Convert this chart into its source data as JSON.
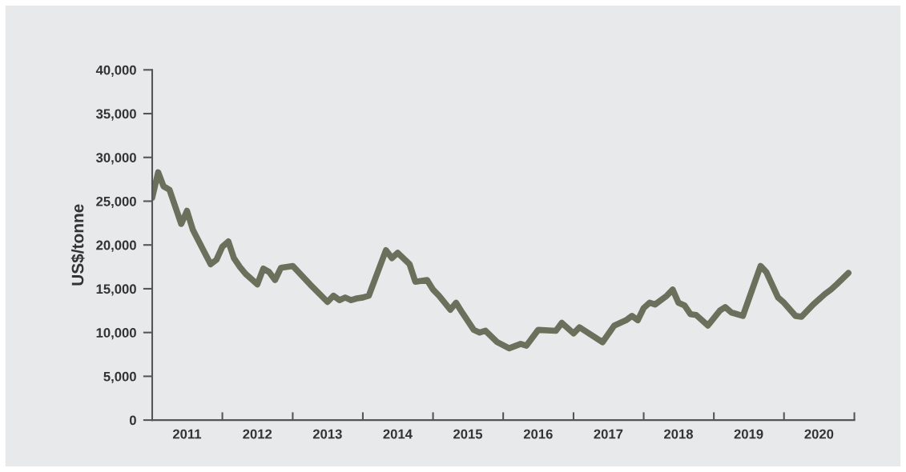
{
  "chart_data": {
    "type": "line",
    "ylabel": "US$/tonne",
    "x": [
      "2011-01",
      "2011-02",
      "2011-03",
      "2011-04",
      "2011-06",
      "2011-07",
      "2011-08",
      "2011-11",
      "2011-12",
      "2012-01",
      "2012-02",
      "2012-03",
      "2012-04",
      "2012-05",
      "2012-07",
      "2012-08",
      "2012-09",
      "2012-10",
      "2012-11",
      "2013-01",
      "2013-04",
      "2013-07",
      "2013-08",
      "2013-09",
      "2013-10",
      "2013-11",
      "2013-12",
      "2014-01",
      "2014-02",
      "2014-05",
      "2014-06",
      "2014-07",
      "2014-09",
      "2014-10",
      "2014-12",
      "2015-01",
      "2015-02",
      "2015-04",
      "2015-05",
      "2015-06",
      "2015-08",
      "2015-09",
      "2015-10",
      "2015-12",
      "2016-02",
      "2016-04",
      "2016-05",
      "2016-07",
      "2016-10",
      "2016-11",
      "2017-01",
      "2017-02",
      "2017-06",
      "2017-08",
      "2017-10",
      "2017-11",
      "2017-12",
      "2018-01",
      "2018-02",
      "2018-03",
      "2018-05",
      "2018-06",
      "2018-07",
      "2018-08",
      "2018-09",
      "2018-10",
      "2018-12",
      "2019-02",
      "2019-03",
      "2019-04",
      "2019-06",
      "2019-09",
      "2019-10",
      "2019-12",
      "2020-01",
      "2020-03",
      "2020-04",
      "2020-06",
      "2020-08",
      "2020-09",
      "2020-10",
      "2020-12"
    ],
    "series": [
      {
        "color": "#6b705c",
        "values": [
          25400,
          28300,
          26700,
          26300,
          22400,
          23900,
          21700,
          17800,
          18300,
          19800,
          20400,
          18500,
          17500,
          16700,
          15500,
          17300,
          16900,
          16000,
          17400,
          17600,
          15500,
          13500,
          14200,
          13700,
          14000,
          13700,
          13900,
          14000,
          14200,
          19400,
          18500,
          19100,
          17800,
          15800,
          16000,
          14900,
          14200,
          12600,
          13400,
          12300,
          10300,
          10000,
          10200,
          8900,
          8200,
          8700,
          8500,
          10300,
          10200,
          11100,
          9900,
          10600,
          8900,
          10800,
          11400,
          11900,
          11400,
          12800,
          13400,
          13200,
          14200,
          14900,
          13400,
          13100,
          12100,
          12000,
          10800,
          12500,
          12900,
          12300,
          11900,
          17600,
          16900,
          14000,
          13400,
          11900,
          11800,
          13200,
          14400,
          14900,
          15500,
          16800
        ]
      }
    ],
    "xlim": [
      "2011-01-01",
      "2021-01-01"
    ],
    "xticks": [
      {
        "value": "2011-07-01",
        "label": "2011"
      },
      {
        "value": "2012-07-01",
        "label": "2012"
      },
      {
        "value": "2013-07-01",
        "label": "2013"
      },
      {
        "value": "2014-07-01",
        "label": "2014"
      },
      {
        "value": "2015-07-01",
        "label": "2015"
      },
      {
        "value": "2016-07-01",
        "label": "2016"
      },
      {
        "value": "2017-07-01",
        "label": "2017"
      },
      {
        "value": "2018-07-01",
        "label": "2018"
      },
      {
        "value": "2019-07-01",
        "label": "2019"
      },
      {
        "value": "2020-07-01",
        "label": "2020"
      },
      {
        "value": "2012-01-01",
        "label": null
      },
      {
        "value": "2013-01-01",
        "label": null
      },
      {
        "value": "2014-01-01",
        "label": null
      },
      {
        "value": "2015-01-01",
        "label": null
      },
      {
        "value": "2016-01-01",
        "label": null
      },
      {
        "value": "2017-01-01",
        "label": null
      },
      {
        "value": "2018-01-01",
        "label": null
      },
      {
        "value": "2019-01-01",
        "label": null
      },
      {
        "value": "2020-01-01",
        "label": null
      },
      {
        "value": "2021-01-01",
        "label": null
      }
    ],
    "ylim": [
      0,
      40000
    ],
    "yticks": [
      {
        "value": 0,
        "label": "0"
      },
      {
        "value": 5000,
        "label": "5,000"
      },
      {
        "value": 10000,
        "label": "10,000"
      },
      {
        "value": 15000,
        "label": "15,000"
      },
      {
        "value": 20000,
        "label": "20,000"
      },
      {
        "value": 25000,
        "label": "25,000"
      },
      {
        "value": 30000,
        "label": "30,000"
      },
      {
        "value": 35000,
        "label": "35,000"
      },
      {
        "value": 40000,
        "label": "40,000"
      }
    ],
    "grid": false,
    "marker": "none",
    "line_style": "solid"
  }
}
